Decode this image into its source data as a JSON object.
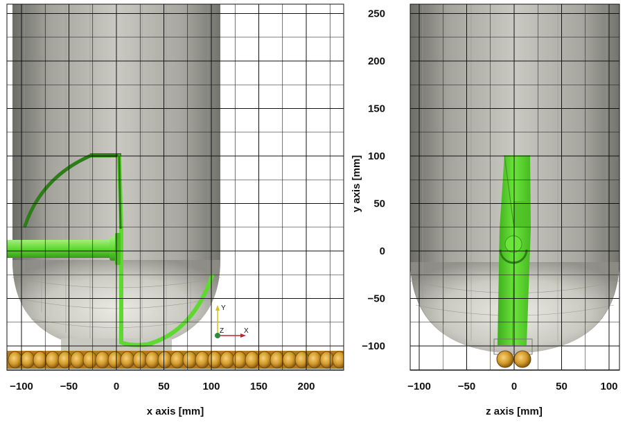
{
  "left_panel": {
    "xlabel": "x axis [mm]",
    "x_ticks": [
      "−100",
      "−50",
      "0",
      "50",
      "100",
      "150",
      "200"
    ]
  },
  "right_panel": {
    "xlabel": "z axis [mm]",
    "ylabel": "y axis [mm]",
    "x_ticks": [
      "−100",
      "−50",
      "0",
      "50",
      "100"
    ],
    "y_ticks": [
      "250",
      "200",
      "150",
      "100",
      "50",
      "0",
      "−50",
      "−100"
    ]
  },
  "triad": {
    "y": "Y",
    "z": "Z",
    "x": "X"
  },
  "colors": {
    "vessel": "#b9b9b0",
    "impeller": "#59d82d",
    "spiral": "#d49a2a",
    "grid": "#111111"
  }
}
